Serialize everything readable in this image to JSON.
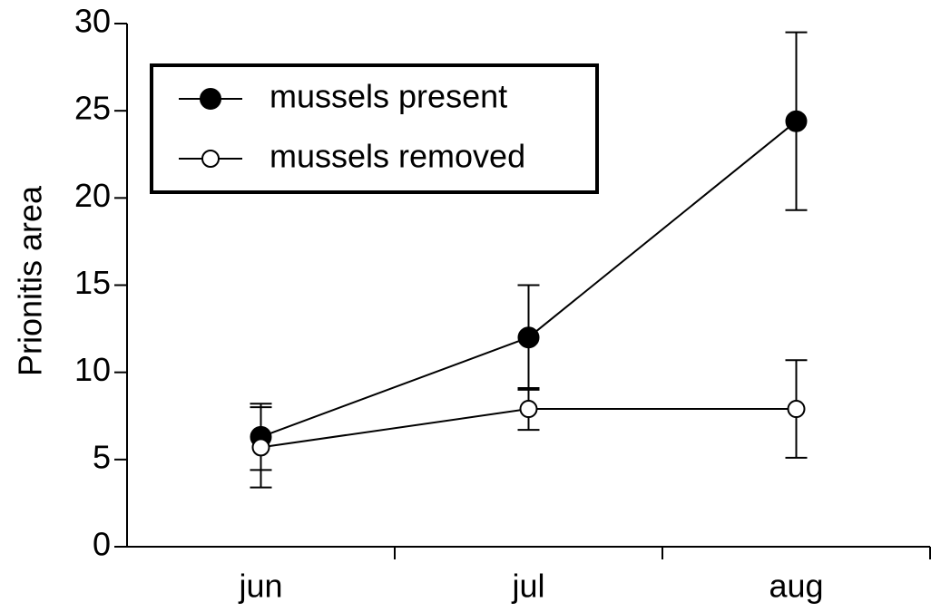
{
  "chart_data": {
    "type": "line",
    "ylabel": "Prionitis area",
    "categories": [
      "jun",
      "jul",
      "aug"
    ],
    "series": [
      {
        "name": "mussels present",
        "color": "#000000",
        "marker": "filled",
        "values": [
          6.3,
          12.0,
          24.4
        ],
        "errors": [
          1.9,
          3.0,
          5.1
        ]
      },
      {
        "name": "mussels removed",
        "color": "#000000",
        "marker": "open",
        "values": [
          5.7,
          7.9,
          7.9
        ],
        "errors": [
          2.3,
          1.2,
          2.8
        ]
      }
    ],
    "ylim": [
      0,
      30
    ],
    "yticks": [
      0,
      5,
      10,
      15,
      20,
      25,
      30
    ],
    "legend": "upper left"
  }
}
